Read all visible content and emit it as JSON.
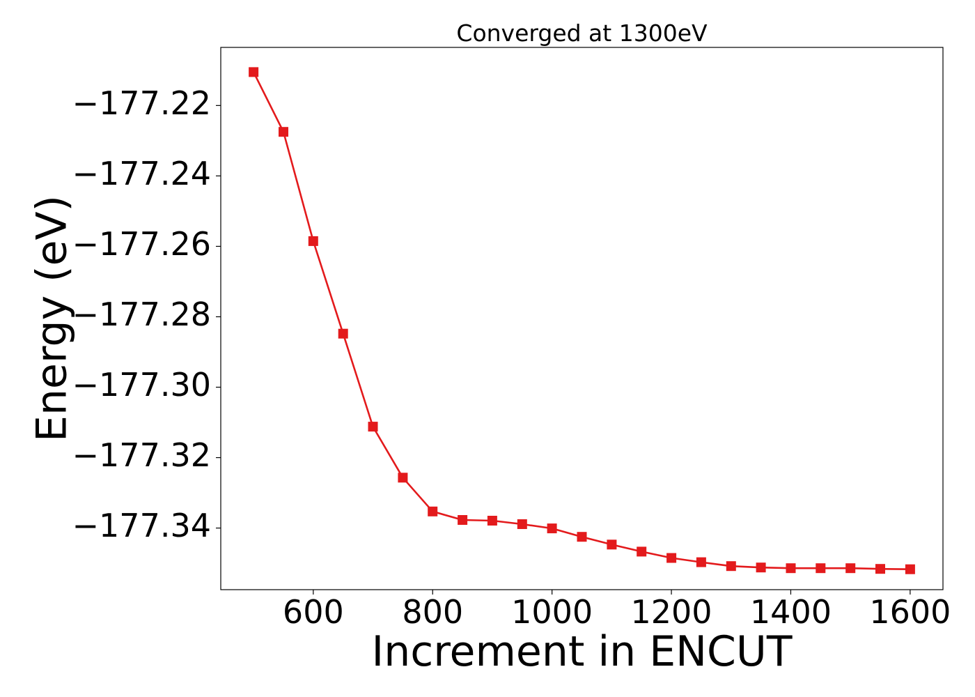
{
  "chart_data": {
    "type": "line",
    "title": "Converged at 1300eV",
    "xlabel": "Increment in ENCUT",
    "ylabel": "Energy (eV)",
    "xlim": [
      445,
      1655
    ],
    "ylim": [
      -177.3575,
      -177.2035
    ],
    "xticks": [
      600,
      800,
      1000,
      1200,
      1400,
      1600
    ],
    "xtick_labels": [
      "600",
      "800",
      "1000",
      "1200",
      "1400",
      "1600"
    ],
    "yticks": [
      -177.22,
      -177.24,
      -177.26,
      -177.28,
      -177.3,
      -177.32,
      -177.34
    ],
    "ytick_labels": [
      "−177.22",
      "−177.24",
      "−177.26",
      "−177.28",
      "−177.30",
      "−177.32",
      "−177.34"
    ],
    "grid": false,
    "series": [
      {
        "color": "#e31a1c",
        "marker": "square",
        "x": [
          500,
          550,
          600,
          650,
          700,
          750,
          800,
          850,
          900,
          950,
          1000,
          1050,
          1100,
          1150,
          1200,
          1250,
          1300,
          1350,
          1400,
          1450,
          1500,
          1550,
          1600
        ],
        "y": [
          -177.2105,
          -177.2275,
          -177.2585,
          -177.2848,
          -177.3112,
          -177.3257,
          -177.3353,
          -177.3377,
          -177.3379,
          -177.3389,
          -177.3401,
          -177.3425,
          -177.3447,
          -177.3467,
          -177.3485,
          -177.3497,
          -177.3508,
          -177.3512,
          -177.3514,
          -177.3514,
          -177.3514,
          -177.3516,
          -177.3517
        ]
      }
    ]
  }
}
